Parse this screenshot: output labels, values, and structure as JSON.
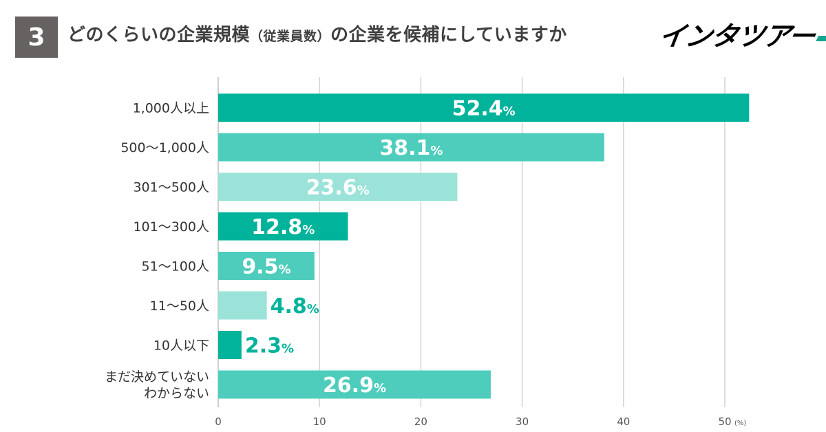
{
  "header": {
    "number": "3",
    "title_part1": "どのくらいの企業規模",
    "title_paren": "（従業員数）",
    "title_part2": "の企業を候補にしていますか",
    "logo": "インタツアー"
  },
  "colors": {
    "dark": "#02b39b",
    "mid": "#4ecdbc",
    "light": "#9be3d8",
    "grid": "#d4d4d4"
  },
  "chart_data": {
    "type": "bar",
    "orientation": "horizontal",
    "unit": "(%)",
    "xlim": [
      0,
      50
    ],
    "ticks": [
      0,
      10,
      20,
      30,
      40,
      50
    ],
    "categories": [
      [
        "1,000人以上"
      ],
      [
        "500〜1,000人"
      ],
      [
        "301〜500人"
      ],
      [
        "101〜300人"
      ],
      [
        "51〜100人"
      ],
      [
        "11〜50人"
      ],
      [
        "10人以下"
      ],
      [
        "まだ決めていない",
        "わからない"
      ]
    ],
    "values": [
      52.4,
      38.1,
      23.6,
      12.8,
      9.5,
      4.8,
      2.3,
      26.9
    ],
    "value_labels": [
      "52.4",
      "38.1",
      "23.6",
      "12.8",
      "9.5",
      "4.8",
      "2.3",
      "26.9"
    ],
    "percent_sign": "%",
    "shades": [
      "dark",
      "mid",
      "light",
      "dark",
      "mid",
      "light",
      "dark",
      "mid"
    ],
    "label_inside": [
      true,
      true,
      true,
      true,
      true,
      false,
      false,
      true
    ]
  }
}
